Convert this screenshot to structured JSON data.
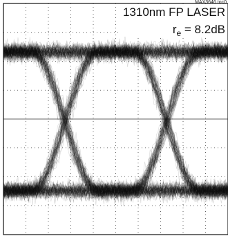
{
  "figure_id": "MAX3646 toc0",
  "chart_data": {
    "type": "scatter",
    "subtype": "eye-diagram",
    "annotation_line1": "1310nm FP LASER",
    "annotation_line2_prefix": "r",
    "annotation_line2_subscript": "e",
    "annotation_line2_suffix": " = 8.2dB",
    "grid": true,
    "grid_divisions_x": 10,
    "grid_divisions_y": 8,
    "xlim": [
      -0.2,
      1.2
    ],
    "ylim": [
      0,
      1
    ],
    "levels": {
      "high": 0.79,
      "low": 0.19
    },
    "crossings": [
      0.183,
      0.817
    ],
    "trace_color": "#111111",
    "background": "#ffffff"
  }
}
